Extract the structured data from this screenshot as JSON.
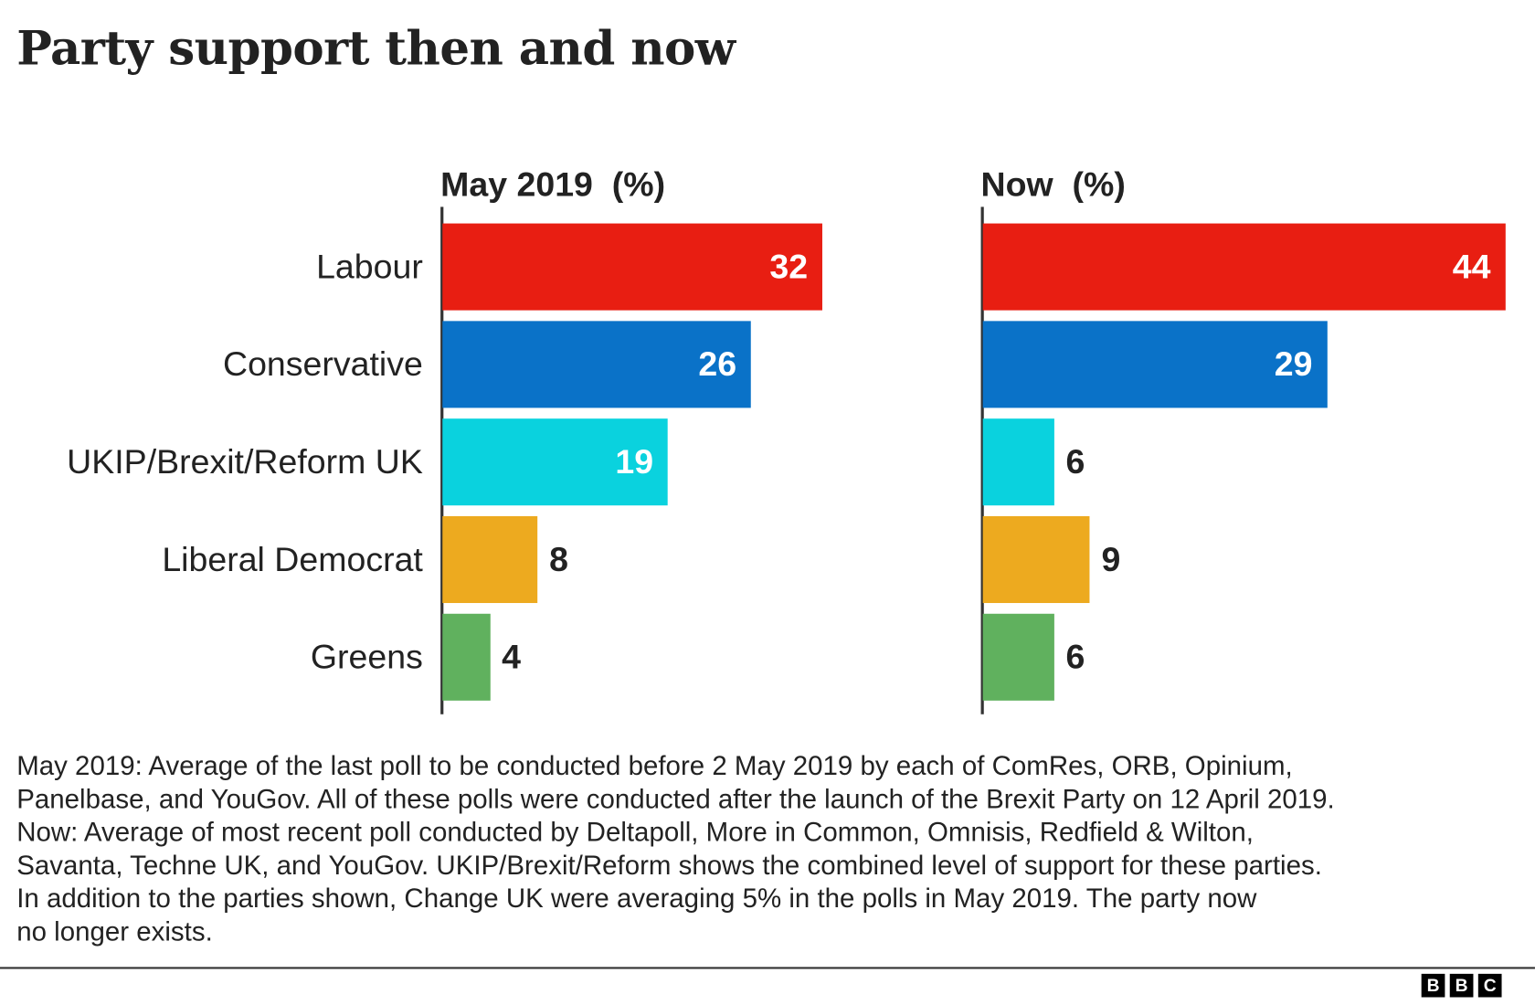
{
  "chart_data": {
    "type": "bar",
    "title": "Party support then and now",
    "categories": [
      "Labour",
      "Conservative",
      "UKIP/Brexit/Reform UK",
      "Liberal Democrat",
      "Greens"
    ],
    "colors": [
      "#e81e12",
      "#0a72c8",
      "#0ad2de",
      "#edaa1f",
      "#60b15e"
    ],
    "panels": [
      {
        "title": "May 2019  (%)",
        "values": [
          32,
          26,
          19,
          8,
          4
        ]
      },
      {
        "title": "Now  (%)",
        "values": [
          44,
          29,
          6,
          9,
          6
        ]
      }
    ],
    "orientation": "horizontal",
    "grid": false
  },
  "notes": [
    "May 2019: Average of the last poll to be conducted before 2 May 2019 by each of ComRes, ORB, Opinium,",
    "Panelbase, and YouGov. All of these polls were conducted after the launch of the Brexit Party on 12 April 2019.",
    "Now: Average of most recent poll conducted by Deltapoll, More in Common, Omnisis, Redfield & Wilton,",
    "Savanta, Techne UK, and YouGov. UKIP/Brexit/Reform shows the combined level of support for these parties.",
    "In addition to the parties shown, Change UK were averaging 5% in the polls in May 2019. The party now",
    "no longer exists."
  ],
  "logo": [
    "B",
    "B",
    "C"
  ]
}
